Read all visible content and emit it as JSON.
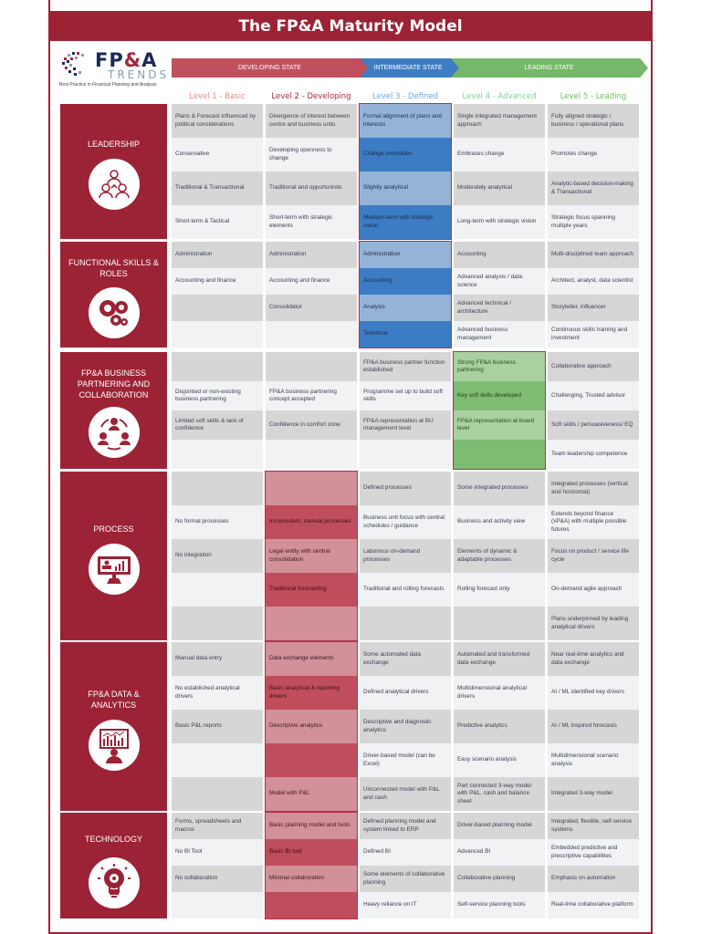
{
  "title": "The FP&A Maturity Model",
  "logo": {
    "line1": "FP&A",
    "line2": "TRENDS",
    "tagline": "Best Practice in Financial Planning and Analysis"
  },
  "states": [
    {
      "label": "DEVELOPING STATE",
      "color": "#c0505d"
    },
    {
      "label": "INTERMEDIATE STATE",
      "color": "#3f7dc2"
    },
    {
      "label": "LEADING STATE",
      "color": "#75b86a"
    }
  ],
  "levels": [
    {
      "label": "Level 1 - Basic",
      "color": "#e6878f"
    },
    {
      "label": "Level 2 - Developing",
      "color": "#a8263a"
    },
    {
      "label": "Level 3 - Defined",
      "color": "#6fa5dc"
    },
    {
      "label": "Level 4 - Advanced",
      "color": "#7ccf9a"
    },
    {
      "label": "Level 5 - Leading",
      "color": "#6cbf5c"
    }
  ],
  "sections": [
    {
      "name": "LEADERSHIP",
      "icon": "people-hierarchy-icon",
      "highlight_level": 3,
      "rows": [
        [
          "Plans & Forecast influenced by political considerations",
          "Divergence of interest between centre and business units",
          "Formal alignment of plans and interests",
          "Single integrated management approach",
          "Fully aligned strategic / business / operational plans"
        ],
        [
          "Conservative",
          "Developing openness to change",
          "Change orientation",
          "Embraces change",
          "Promotes change"
        ],
        [
          "Traditional & Transactional",
          "Traditional and opportunistic",
          "Slightly analytical",
          "Moderately analytical",
          "Analytic-based decision-making & Transactional"
        ],
        [
          "Short-term & Tactical",
          "Short-term with strategic elements",
          "Medium-term with strategic vision",
          "Long-term with strategic vision",
          "Strategic focus spanning multiple years"
        ]
      ]
    },
    {
      "name": "FUNCTIONAL SKILLS & ROLES",
      "icon": "gears-icon",
      "highlight_level": 3,
      "rows": [
        [
          "Administration",
          "Administration",
          "Administration",
          "Accounting",
          "Multi-disciplined team approach"
        ],
        [
          "Accounting and finance",
          "Accounting and finance",
          "Accounting",
          "Advanced analysis / data science",
          "Architect, analyst,  data scientist"
        ],
        [
          "",
          "Consolidator",
          "Analysis",
          "Advanced technical / architecture",
          "Storyteller, influencer"
        ],
        [
          "",
          "",
          "Technical",
          "Advanced business management",
          "Continuous skills training and investment"
        ]
      ]
    },
    {
      "name": "FP&A BUSINESS PARTNERING AND COLLABORATION",
      "icon": "collaboration-cycle-icon",
      "highlight_level": 4,
      "rows": [
        [
          "",
          "",
          "FP&A business partner function established",
          "Strong FP&A business partnering",
          "Collaborative approach"
        ],
        [
          "Disjointed or non-existing business partnering",
          "FP&A business partnering concept accepted",
          "Programme set up to build soft skills",
          "Key soft skills developed",
          "Challenging, Trusted advisor"
        ],
        [
          "Limited soft skills & lack of confidence",
          "Confidence in comfort zone",
          "FP&A representation at BU management level",
          "FP&A representation at board level",
          "Soft skills / persuasiveness/ EQ"
        ],
        [
          "",
          "",
          "",
          "",
          "Team leadership competence"
        ]
      ]
    },
    {
      "name": "PROCESS",
      "icon": "presentation-chart-icon",
      "highlight_level": 2,
      "rows": [
        [
          "",
          "",
          "Defined processes",
          "Some integrated processes",
          "Integrated processes (vertical and horizontal)"
        ],
        [
          "No formal processes",
          "Inconsistent, manual processes",
          "Business unit focus with central schedules / guidance",
          "Business and activity view",
          "Extends beyond finance (xP&A) with multiple possible futures"
        ],
        [
          "No integration",
          "Legal entity with central consolidation",
          "Laborious on-demand processes",
          "Elements of dynamic & adaptable processes",
          "Focus on product / service life cycle"
        ],
        [
          "",
          "Traditional forecasting",
          "Traditional and rolling forecasts",
          "Rolling forecast only",
          "On-demand agile approach"
        ],
        [
          "",
          "",
          "",
          "",
          "Plans underpinned by leading analytical drivers"
        ]
      ]
    },
    {
      "name": "FP&A DATA & ANALYTICS",
      "icon": "analytics-dashboard-icon",
      "highlight_level": 2,
      "rows": [
        [
          "Manual data entry",
          "Data exchange elements",
          "Some automated data exchange",
          "Automated and transformed data exchange",
          "Near real-time analytics and data exchange"
        ],
        [
          "No established analytical drivers",
          "Basic analytical & reporting drivers",
          "Defined analytical drivers",
          "Multidimensional analytical drivers",
          "AI / ML identified key drivers"
        ],
        [
          "Basic P&L reports",
          "Descriptive analytics",
          "Descriptive and diagnostic analytics",
          "Predictive analytics",
          "AI / ML inspired forecasts"
        ],
        [
          "",
          "",
          "Driver-based model (can be Excel)",
          "Easy scenario analysis",
          "Multidimensional scenario analysis"
        ],
        [
          "",
          "Model with P&L",
          "Unconnected model with P&L and cash",
          "Part connected 3-way model with P&L, cash and balance sheet",
          "Integrated 3-way model"
        ]
      ]
    },
    {
      "name": "TECHNOLOGY",
      "icon": "lightbulb-gear-icon",
      "highlight_level": 2,
      "rows": [
        [
          "Forms, spreadsheets and macros",
          "Basic planning model and tools",
          "Defined planning model and system linked to ERP",
          "Driver-based planning model",
          "Integrated, flexible, self-service systems"
        ],
        [
          "No BI Tool",
          "Basic BI tool",
          "Defined BI",
          "Advanced BI",
          "Embedded predictive and prescriptive capabilities"
        ],
        [
          "No collaboration",
          "Minimal collaboration",
          "Some elements of collaborative planning",
          "Collaborative planning",
          "Emphasis on automation"
        ],
        [
          "",
          "",
          "Heavy reliance on IT",
          "Self-service planning tools",
          "Real-time collaborative platform"
        ]
      ]
    }
  ]
}
